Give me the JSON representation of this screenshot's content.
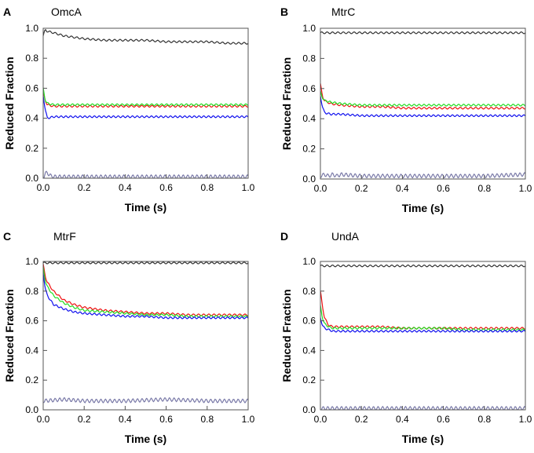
{
  "colors": {
    "black_trace": "#333333",
    "red_trace": "#ee1111",
    "green_trace": "#22dd22",
    "blue_trace": "#1111ee",
    "gray_trace": "#7a7aa8",
    "axis": "#555555"
  },
  "chart_data": [
    {
      "type": "line",
      "panel_letter": "A",
      "title": "OmcA",
      "xlabel": "Time (s)",
      "ylabel": "Reduced Fraction",
      "xlim": [
        0.0,
        1.0
      ],
      "ylim": [
        0.0,
        1.0
      ],
      "x_ticks": [
        "0.0",
        "0.2",
        "0.4",
        "0.6",
        "0.8",
        "1.0"
      ],
      "y_ticks": [
        "0.0",
        "0.2",
        "0.4",
        "0.6",
        "0.8",
        "1.0"
      ],
      "grid": false,
      "series": [
        {
          "name": "black",
          "color_key": "black_trace",
          "x": [
            0,
            0.01,
            0.02,
            0.05,
            0.1,
            0.2,
            0.3,
            0.4,
            0.5,
            0.6,
            0.7,
            0.8,
            0.9,
            1.0
          ],
          "y": [
            0.95,
            0.99,
            0.98,
            0.97,
            0.95,
            0.93,
            0.92,
            0.92,
            0.92,
            0.91,
            0.91,
            0.91,
            0.9,
            0.9
          ]
        },
        {
          "name": "red",
          "color_key": "red_trace",
          "x": [
            0,
            0.01,
            0.02,
            0.05,
            0.1,
            0.2,
            0.3,
            0.4,
            0.5,
            0.6,
            0.7,
            0.8,
            0.9,
            1.0
          ],
          "y": [
            0.57,
            0.52,
            0.49,
            0.48,
            0.48,
            0.48,
            0.48,
            0.48,
            0.48,
            0.48,
            0.48,
            0.48,
            0.48,
            0.48
          ]
        },
        {
          "name": "green",
          "color_key": "green_trace",
          "x": [
            0,
            0.01,
            0.02,
            0.05,
            0.1,
            0.2,
            0.3,
            0.4,
            0.5,
            0.6,
            0.7,
            0.8,
            0.9,
            1.0
          ],
          "y": [
            0.6,
            0.52,
            0.5,
            0.49,
            0.49,
            0.49,
            0.49,
            0.49,
            0.49,
            0.49,
            0.49,
            0.49,
            0.49,
            0.49
          ]
        },
        {
          "name": "blue",
          "color_key": "blue_trace",
          "x": [
            0,
            0.01,
            0.02,
            0.05,
            0.1,
            0.2,
            0.3,
            0.4,
            0.5,
            0.6,
            0.7,
            0.8,
            0.9,
            1.0
          ],
          "y": [
            0.55,
            0.46,
            0.4,
            0.41,
            0.41,
            0.41,
            0.41,
            0.41,
            0.41,
            0.41,
            0.41,
            0.41,
            0.41,
            0.41
          ]
        },
        {
          "name": "gray",
          "color_key": "gray_trace",
          "x": [
            0,
            0.01,
            0.02,
            0.03,
            0.05,
            0.1,
            0.2,
            0.4,
            0.6,
            0.8,
            1.0
          ],
          "y": [
            0.0,
            0.03,
            0.04,
            0.02,
            0.01,
            0.01,
            0.01,
            0.01,
            0.01,
            0.01,
            0.01
          ]
        }
      ]
    },
    {
      "type": "line",
      "panel_letter": "B",
      "title": "MtrC",
      "xlabel": "Time (s)",
      "ylabel": "Reduced Fraction",
      "xlim": [
        0.0,
        1.0
      ],
      "ylim": [
        0.0,
        1.0
      ],
      "x_ticks": [
        "0.0",
        "0.2",
        "0.4",
        "0.6",
        "0.8",
        "1.0"
      ],
      "y_ticks": [
        "0.0",
        "0.2",
        "0.4",
        "0.6",
        "0.8",
        "1.0"
      ],
      "grid": false,
      "series": [
        {
          "name": "black",
          "color_key": "black_trace",
          "x": [
            0,
            0.1,
            0.2,
            0.4,
            0.6,
            0.8,
            1.0
          ],
          "y": [
            0.97,
            0.97,
            0.97,
            0.97,
            0.97,
            0.97,
            0.97
          ]
        },
        {
          "name": "red",
          "color_key": "red_trace",
          "x": [
            0,
            0.01,
            0.02,
            0.05,
            0.1,
            0.2,
            0.3,
            0.4,
            0.5,
            0.6,
            0.7,
            0.8,
            0.9,
            1.0
          ],
          "y": [
            0.63,
            0.55,
            0.52,
            0.5,
            0.49,
            0.48,
            0.48,
            0.47,
            0.47,
            0.47,
            0.47,
            0.47,
            0.47,
            0.47
          ]
        },
        {
          "name": "green",
          "color_key": "green_trace",
          "x": [
            0,
            0.01,
            0.02,
            0.05,
            0.1,
            0.2,
            0.3,
            0.4,
            0.5,
            0.6,
            0.7,
            0.8,
            0.9,
            1.0
          ],
          "y": [
            0.58,
            0.54,
            0.52,
            0.51,
            0.5,
            0.49,
            0.49,
            0.49,
            0.49,
            0.49,
            0.49,
            0.49,
            0.49,
            0.49
          ]
        },
        {
          "name": "blue",
          "color_key": "blue_trace",
          "x": [
            0,
            0.01,
            0.02,
            0.05,
            0.1,
            0.2,
            0.3,
            0.4,
            0.5,
            0.6,
            0.7,
            0.8,
            0.9,
            1.0
          ],
          "y": [
            0.55,
            0.48,
            0.44,
            0.43,
            0.43,
            0.42,
            0.42,
            0.42,
            0.42,
            0.42,
            0.42,
            0.42,
            0.42,
            0.42
          ]
        },
        {
          "name": "gray",
          "color_key": "gray_trace",
          "x": [
            0,
            0.02,
            0.04,
            0.06,
            0.08,
            0.1,
            0.2,
            0.4,
            0.6,
            0.8,
            1.0
          ],
          "y": [
            0.02,
            0.03,
            0.02,
            0.03,
            0.02,
            0.03,
            0.02,
            0.02,
            0.02,
            0.02,
            0.03
          ]
        }
      ]
    },
    {
      "type": "line",
      "panel_letter": "C",
      "title": "MtrF",
      "xlabel": "Time (s)",
      "ylabel": "Reduced Fraction",
      "xlim": [
        0.0,
        1.0
      ],
      "ylim": [
        0.0,
        1.0
      ],
      "x_ticks": [
        "0.0",
        "0.2",
        "0.4",
        "0.6",
        "0.8",
        "1.0"
      ],
      "y_ticks": [
        "0.0",
        "0.2",
        "0.4",
        "0.6",
        "0.8",
        "1.0"
      ],
      "grid": false,
      "series": [
        {
          "name": "black",
          "color_key": "black_trace",
          "x": [
            0,
            0.1,
            0.2,
            0.4,
            0.6,
            0.8,
            1.0
          ],
          "y": [
            0.99,
            0.99,
            0.99,
            0.99,
            0.99,
            0.99,
            0.99
          ]
        },
        {
          "name": "red",
          "color_key": "red_trace",
          "x": [
            0,
            0.01,
            0.02,
            0.05,
            0.1,
            0.15,
            0.2,
            0.3,
            0.4,
            0.5,
            0.6,
            0.7,
            0.8,
            0.9,
            1.0
          ],
          "y": [
            0.98,
            0.9,
            0.86,
            0.8,
            0.74,
            0.71,
            0.69,
            0.67,
            0.66,
            0.65,
            0.65,
            0.64,
            0.64,
            0.64,
            0.64
          ]
        },
        {
          "name": "green",
          "color_key": "green_trace",
          "x": [
            0,
            0.01,
            0.02,
            0.05,
            0.1,
            0.15,
            0.2,
            0.3,
            0.4,
            0.5,
            0.6,
            0.7,
            0.8,
            0.9,
            1.0
          ],
          "y": [
            0.96,
            0.87,
            0.83,
            0.77,
            0.72,
            0.69,
            0.67,
            0.66,
            0.65,
            0.64,
            0.64,
            0.63,
            0.63,
            0.63,
            0.63
          ]
        },
        {
          "name": "blue",
          "color_key": "blue_trace",
          "x": [
            0,
            0.01,
            0.02,
            0.05,
            0.1,
            0.15,
            0.2,
            0.3,
            0.4,
            0.5,
            0.6,
            0.7,
            0.8,
            0.9,
            1.0
          ],
          "y": [
            0.92,
            0.82,
            0.77,
            0.71,
            0.68,
            0.66,
            0.65,
            0.64,
            0.63,
            0.63,
            0.62,
            0.62,
            0.62,
            0.62,
            0.62
          ]
        },
        {
          "name": "gray",
          "color_key": "gray_trace",
          "x": [
            0,
            0.1,
            0.2,
            0.4,
            0.6,
            0.8,
            1.0
          ],
          "y": [
            0.06,
            0.07,
            0.06,
            0.06,
            0.07,
            0.06,
            0.06
          ]
        }
      ]
    },
    {
      "type": "line",
      "panel_letter": "D",
      "title": "UndA",
      "xlabel": "Time (s)",
      "ylabel": "Reduced Fraction",
      "xlim": [
        0.0,
        1.0
      ],
      "ylim": [
        0.0,
        1.0
      ],
      "x_ticks": [
        "0.0",
        "0.2",
        "0.4",
        "0.6",
        "0.8",
        "1.0"
      ],
      "y_ticks": [
        "0.0",
        "0.2",
        "0.4",
        "0.6",
        "0.8",
        "1.0"
      ],
      "grid": false,
      "series": [
        {
          "name": "black",
          "color_key": "black_trace",
          "x": [
            0,
            0.1,
            0.2,
            0.4,
            0.6,
            0.8,
            1.0
          ],
          "y": [
            0.97,
            0.97,
            0.97,
            0.97,
            0.97,
            0.97,
            0.97
          ]
        },
        {
          "name": "red",
          "color_key": "red_trace",
          "x": [
            0,
            0.01,
            0.02,
            0.04,
            0.06,
            0.1,
            0.2,
            0.3,
            0.4,
            0.5,
            0.6,
            0.7,
            0.8,
            0.9,
            1.0
          ],
          "y": [
            0.8,
            0.7,
            0.62,
            0.57,
            0.56,
            0.56,
            0.56,
            0.56,
            0.55,
            0.55,
            0.55,
            0.55,
            0.55,
            0.55,
            0.55
          ]
        },
        {
          "name": "green",
          "color_key": "green_trace",
          "x": [
            0,
            0.01,
            0.02,
            0.04,
            0.06,
            0.1,
            0.2,
            0.3,
            0.4,
            0.5,
            0.6,
            0.7,
            0.8,
            0.9,
            1.0
          ],
          "y": [
            0.7,
            0.62,
            0.58,
            0.56,
            0.55,
            0.55,
            0.55,
            0.55,
            0.55,
            0.55,
            0.55,
            0.54,
            0.54,
            0.54,
            0.54
          ]
        },
        {
          "name": "blue",
          "color_key": "blue_trace",
          "x": [
            0,
            0.01,
            0.02,
            0.04,
            0.06,
            0.1,
            0.2,
            0.3,
            0.4,
            0.5,
            0.6,
            0.7,
            0.8,
            0.9,
            1.0
          ],
          "y": [
            0.62,
            0.57,
            0.55,
            0.54,
            0.53,
            0.53,
            0.53,
            0.53,
            0.53,
            0.53,
            0.53,
            0.53,
            0.53,
            0.53,
            0.53
          ]
        },
        {
          "name": "gray",
          "color_key": "gray_trace",
          "x": [
            0,
            0.1,
            0.2,
            0.4,
            0.6,
            0.8,
            1.0
          ],
          "y": [
            0.01,
            0.01,
            0.01,
            0.01,
            0.01,
            0.01,
            0.01
          ]
        }
      ]
    }
  ]
}
